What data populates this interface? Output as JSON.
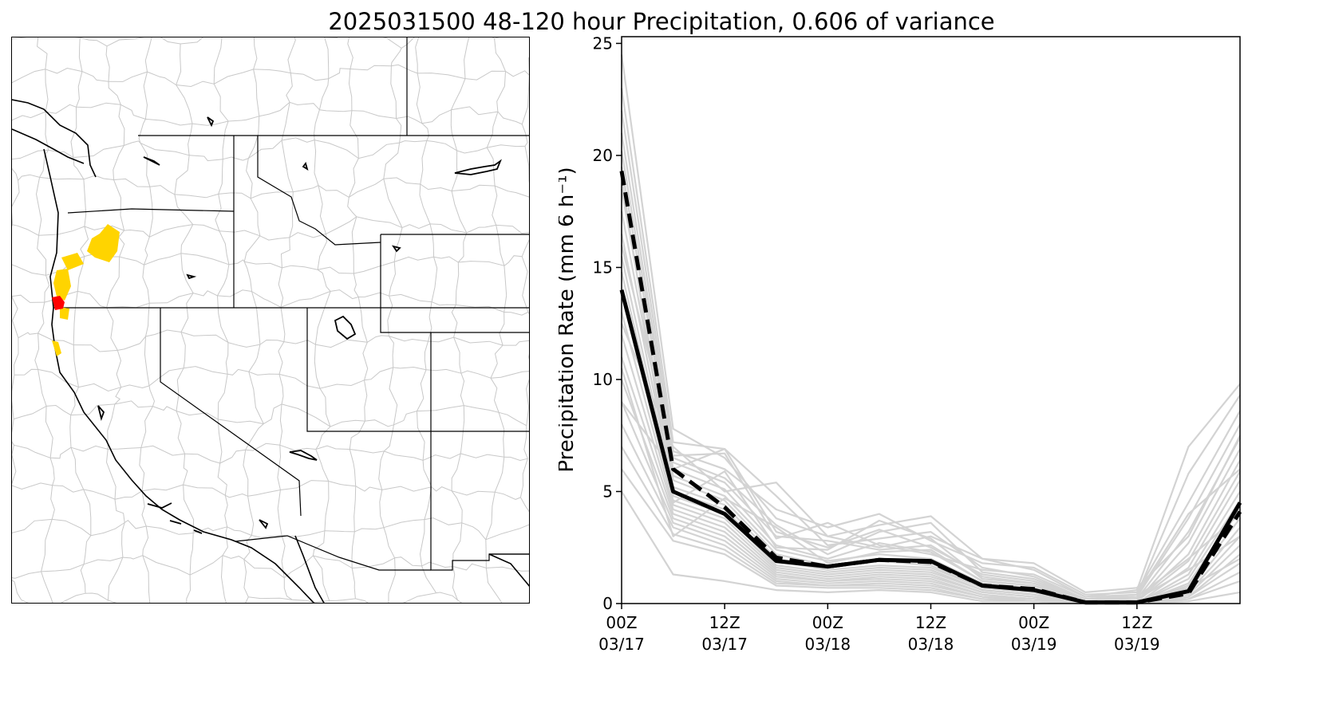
{
  "figure": {
    "title": "2025031500 48-120 hour Precipitation, 0.606 of variance"
  },
  "map": {
    "colors": {
      "basins": "#c8c8c8",
      "borders": "#000000",
      "highlight_yellow": "#ffd400",
      "highlight_red": "#ff0000"
    }
  },
  "chart_data": {
    "type": "line",
    "ylabel": "Precipitation Rate (mm 6 h⁻¹)",
    "ylim": [
      0,
      25.3
    ],
    "yticks": [
      0,
      5,
      10,
      15,
      20,
      25
    ],
    "xticks": [
      {
        "line1": "00Z",
        "line2": "03/17"
      },
      {
        "line1": "12Z",
        "line2": "03/17"
      },
      {
        "line1": "00Z",
        "line2": "03/18"
      },
      {
        "line1": "12Z",
        "line2": "03/18"
      },
      {
        "line1": "00Z",
        "line2": "03/19"
      },
      {
        "line1": "12Z",
        "line2": "03/19"
      }
    ],
    "x_steps": 12,
    "series": [
      {
        "style": "solid",
        "color": "#000000",
        "values": [
          14.0,
          5.0,
          4.0,
          1.9,
          1.65,
          1.95,
          1.9,
          0.8,
          0.6,
          0.05,
          0.05,
          0.55,
          4.5
        ]
      },
      {
        "style": "dashed",
        "color": "#000000",
        "values": [
          19.3,
          6.0,
          4.3,
          2.05,
          1.65,
          1.95,
          1.85,
          0.8,
          0.65,
          0.05,
          0.05,
          0.45,
          4.1
        ]
      }
    ],
    "ensemble_color": "#d3d3d3",
    "ensemble": [
      [
        24.5,
        7.8,
        6.5,
        3.8,
        3.0,
        3.5,
        3.9,
        2.0,
        1.5,
        0.3,
        0.6,
        7.0,
        9.8
      ],
      [
        23.0,
        7.2,
        6.9,
        4.8,
        2.6,
        2.9,
        3.2,
        1.6,
        1.2,
        0.2,
        0.4,
        5.8,
        9.3
      ],
      [
        22.0,
        6.8,
        6.0,
        4.2,
        3.4,
        4.0,
        2.8,
        1.8,
        1.6,
        0.4,
        0.5,
        4.5,
        8.6
      ],
      [
        21.0,
        6.5,
        5.6,
        3.5,
        2.2,
        3.2,
        3.6,
        1.4,
        1.1,
        0.2,
        0.3,
        3.8,
        8.0
      ],
      [
        20.2,
        6.3,
        5.4,
        3.0,
        2.8,
        2.4,
        2.6,
        1.2,
        0.9,
        0.1,
        0.2,
        3.2,
        7.4
      ],
      [
        19.5,
        6.0,
        5.1,
        2.6,
        2.0,
        2.7,
        2.3,
        1.0,
        0.8,
        0.1,
        0.1,
        2.7,
        6.9
      ],
      [
        18.5,
        5.7,
        4.8,
        2.4,
        1.9,
        2.2,
        2.0,
        0.9,
        0.7,
        0.1,
        0.1,
        2.2,
        6.4
      ],
      [
        17.5,
        5.5,
        4.6,
        2.2,
        1.7,
        2.0,
        1.8,
        0.8,
        0.6,
        0.0,
        0.1,
        1.9,
        5.9
      ],
      [
        16.5,
        5.2,
        4.4,
        2.0,
        1.6,
        1.9,
        1.7,
        0.7,
        0.5,
        0.0,
        0.0,
        1.6,
        5.5
      ],
      [
        15.5,
        5.0,
        4.2,
        1.9,
        1.5,
        1.7,
        1.6,
        0.7,
        0.5,
        0.0,
        0.0,
        1.3,
        5.0
      ],
      [
        14.8,
        4.8,
        4.0,
        1.7,
        1.4,
        1.6,
        1.5,
        0.6,
        0.4,
        0.0,
        0.0,
        1.1,
        4.6
      ],
      [
        13.8,
        4.6,
        3.8,
        1.6,
        1.3,
        1.5,
        1.4,
        0.6,
        0.4,
        0.0,
        0.0,
        0.9,
        4.2
      ],
      [
        13.0,
        4.4,
        3.6,
        1.5,
        1.2,
        1.4,
        1.3,
        0.5,
        0.3,
        0.0,
        0.0,
        0.8,
        3.8
      ],
      [
        12.0,
        4.2,
        3.4,
        1.4,
        1.1,
        1.3,
        1.2,
        0.5,
        0.3,
        0.0,
        0.0,
        0.6,
        3.4
      ],
      [
        11.0,
        4.0,
        3.2,
        1.3,
        1.0,
        1.2,
        1.1,
        0.4,
        0.2,
        0.0,
        0.0,
        0.5,
        3.0
      ],
      [
        10.0,
        3.8,
        3.0,
        1.2,
        1.0,
        1.1,
        1.0,
        0.4,
        0.2,
        0.0,
        0.0,
        0.4,
        2.6
      ],
      [
        9.0,
        3.6,
        2.8,
        1.1,
        0.9,
        1.0,
        0.9,
        0.3,
        0.2,
        0.0,
        0.0,
        0.3,
        2.2
      ],
      [
        8.0,
        3.4,
        2.6,
        1.0,
        0.8,
        0.9,
        0.8,
        0.3,
        0.1,
        0.0,
        0.0,
        0.3,
        1.8
      ],
      [
        7.0,
        3.1,
        2.4,
        0.9,
        0.8,
        0.8,
        0.7,
        0.2,
        0.1,
        0.0,
        0.0,
        0.2,
        1.4
      ],
      [
        6.0,
        2.8,
        2.2,
        0.8,
        0.7,
        0.7,
        0.6,
        0.2,
        0.1,
        0.0,
        0.0,
        0.2,
        1.0
      ],
      [
        5.0,
        1.3,
        1.0,
        0.6,
        0.5,
        0.6,
        0.5,
        0.1,
        0.1,
        0.0,
        0.0,
        0.1,
        0.5
      ],
      [
        9.0,
        6.0,
        6.9,
        3.2,
        2.5,
        3.3,
        2.5,
        1.3,
        1.0,
        0.2,
        0.3,
        2.0,
        4.0
      ],
      [
        12.5,
        7.0,
        5.0,
        5.4,
        3.0,
        2.5,
        3.0,
        2.0,
        1.8,
        0.5,
        0.7,
        3.0,
        7.5
      ],
      [
        16.0,
        6.6,
        6.7,
        2.9,
        3.6,
        2.6,
        2.2,
        1.5,
        1.3,
        0.3,
        0.4,
        4.0,
        6.0
      ],
      [
        19.0,
        4.5,
        5.9,
        2.5,
        2.4,
        3.7,
        2.9,
        1.1,
        0.9,
        0.2,
        0.2,
        1.5,
        3.0
      ],
      [
        10.5,
        3.0,
        4.7,
        3.4,
        1.8,
        2.3,
        2.4,
        1.0,
        0.8,
        0.1,
        0.1,
        0.7,
        2.0
      ]
    ]
  }
}
